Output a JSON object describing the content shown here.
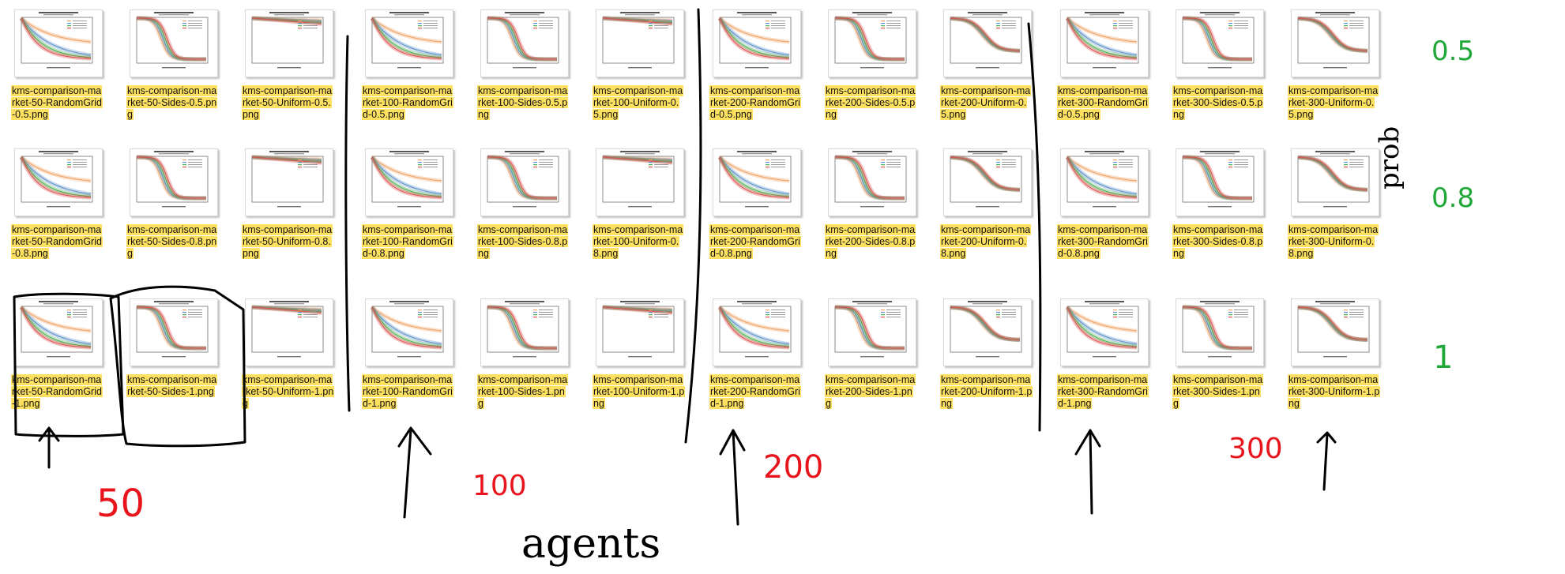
{
  "files": [
    {
      "label": "kms-comparison-market-50-RandomGrid-0.5.png",
      "shape": "spread",
      "legend": true
    },
    {
      "label": "kms-comparison-market-50-Sides-0.5.png",
      "shape": "steep",
      "legend": true
    },
    {
      "label": "kms-comparison-market-50-Uniform-0.5.png",
      "shape": "flat",
      "legend": true
    },
    {
      "label": "kms-comparison-market-100-RandomGrid-0.5.png",
      "shape": "spread",
      "legend": true
    },
    {
      "label": "kms-comparison-market-100-Sides-0.5.png",
      "shape": "steep",
      "legend": true
    },
    {
      "label": "kms-comparison-market-100-Uniform-0.5.png",
      "shape": "flat",
      "legend": true
    },
    {
      "label": "kms-comparison-market-200-RandomGrid-0.5.png",
      "shape": "spread",
      "legend": true
    },
    {
      "label": "kms-comparison-market-200-Sides-0.5.png",
      "shape": "steep",
      "legend": true
    },
    {
      "label": "kms-comparison-market-200-Uniform-0.5.png",
      "shape": "sigmoid",
      "legend": true
    },
    {
      "label": "kms-comparison-market-300-RandomGrid-0.5.png",
      "shape": "spread",
      "legend": true
    },
    {
      "label": "kms-comparison-market-300-Sides-0.5.png",
      "shape": "steep",
      "legend": true
    },
    {
      "label": "kms-comparison-market-300-Uniform-0.5.png",
      "shape": "sigmoid",
      "legend": true
    },
    {
      "label": "kms-comparison-market-50-RandomGrid-0.8.png",
      "shape": "spread",
      "legend": true
    },
    {
      "label": "kms-comparison-market-50-Sides-0.8.png",
      "shape": "steep",
      "legend": true
    },
    {
      "label": "kms-comparison-market-50-Uniform-0.8.png",
      "shape": "flat",
      "legend": true
    },
    {
      "label": "kms-comparison-market-100-RandomGrid-0.8.png",
      "shape": "spread",
      "legend": true
    },
    {
      "label": "kms-comparison-market-100-Sides-0.8.png",
      "shape": "steep",
      "legend": true
    },
    {
      "label": "kms-comparison-market-100-Uniform-0.8.png",
      "shape": "flat",
      "legend": true
    },
    {
      "label": "kms-comparison-market-200-RandomGrid-0.8.png",
      "shape": "spread",
      "legend": true
    },
    {
      "label": "kms-comparison-market-200-Sides-0.8.png",
      "shape": "steep",
      "legend": true
    },
    {
      "label": "kms-comparison-market-200-Uniform-0.8.png",
      "shape": "sigmoid",
      "legend": true
    },
    {
      "label": "kms-comparison-market-300-RandomGrid-0.8.png",
      "shape": "spread",
      "legend": true
    },
    {
      "label": "kms-comparison-market-300-Sides-0.8.png",
      "shape": "steep",
      "legend": true
    },
    {
      "label": "kms-comparison-market-300-Uniform-0.8.png",
      "shape": "sigmoid",
      "legend": true
    },
    {
      "label": "kms-comparison-market-50-RandomGrid-1.png",
      "shape": "spread",
      "legend": true
    },
    {
      "label": "kms-comparison-market-50-Sides-1.png",
      "shape": "steep",
      "legend": true
    },
    {
      "label": "kms-comparison-market-50-Uniform-1.png",
      "shape": "flat",
      "legend": true
    },
    {
      "label": "kms-comparison-market-100-RandomGrid-1.png",
      "shape": "spread",
      "legend": true
    },
    {
      "label": "kms-comparison-market-100-Sides-1.png",
      "shape": "steep",
      "legend": true
    },
    {
      "label": "kms-comparison-market-100-Uniform-1.png",
      "shape": "flat",
      "legend": true
    },
    {
      "label": "kms-comparison-market-200-RandomGrid-1.png",
      "shape": "spread",
      "legend": true
    },
    {
      "label": "kms-comparison-market-200-Sides-1.png",
      "shape": "steep",
      "legend": true
    },
    {
      "label": "kms-comparison-market-200-Uniform-1.png",
      "shape": "sigmoid",
      "legend": true
    },
    {
      "label": "kms-comparison-market-300-RandomGrid-1.png",
      "shape": "spread",
      "legend": true
    },
    {
      "label": "kms-comparison-market-300-Sides-1.png",
      "shape": "steep",
      "legend": true
    },
    {
      "label": "kms-comparison-market-300-Uniform-1.png",
      "shape": "sigmoid",
      "legend": true
    }
  ],
  "annotations": {
    "row_values": [
      "0.5",
      "0.8",
      "1"
    ],
    "row_axis": "prob",
    "column_values": [
      "50",
      "100",
      "200",
      "300"
    ],
    "column_axis": "agents"
  },
  "colors": {
    "label_highlight": "#ffe161",
    "ink_black": "#000000",
    "ink_red": "#e8141c",
    "ink_green": "#1fa838",
    "series": [
      "#f0a060",
      "#5b8fc8",
      "#4caf50",
      "#e05050"
    ]
  }
}
